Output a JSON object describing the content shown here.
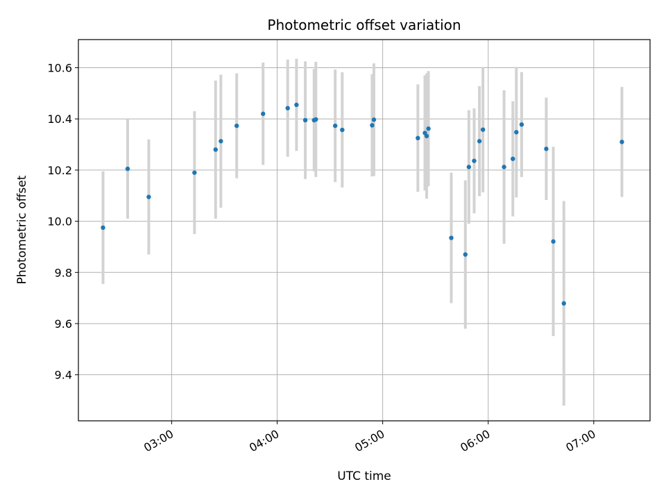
{
  "chart_data": {
    "type": "scatter",
    "title": "Photometric offset variation",
    "xlabel": "UTC time",
    "ylabel": "Photometric offset",
    "grid": true,
    "x_unit": "UTC HH:MM",
    "xlim": [
      "02:07",
      "07:32"
    ],
    "ylim": [
      9.22,
      10.71
    ],
    "x_ticks": [
      "03:00",
      "04:00",
      "05:00",
      "06:00",
      "07:00"
    ],
    "y_ticks": [
      "9.4",
      "9.6",
      "9.8",
      "10.0",
      "10.2",
      "10.4",
      "10.6"
    ],
    "colors": {
      "point": "#1f77b4",
      "errorbar": "#d3d3d3",
      "grid": "#b0b0b0"
    },
    "points": [
      {
        "x": "02:21",
        "y": 9.975,
        "err": 0.22
      },
      {
        "x": "02:35",
        "y": 10.205,
        "err": 0.195
      },
      {
        "x": "02:47",
        "y": 10.095,
        "err": 0.225
      },
      {
        "x": "03:13",
        "y": 10.19,
        "err": 0.24
      },
      {
        "x": "03:25",
        "y": 10.28,
        "err": 0.27
      },
      {
        "x": "03:28",
        "y": 10.313,
        "err": 0.26
      },
      {
        "x": "03:37",
        "y": 10.373,
        "err": 0.205
      },
      {
        "x": "03:52",
        "y": 10.42,
        "err": 0.2
      },
      {
        "x": "04:06",
        "y": 10.442,
        "err": 0.19
      },
      {
        "x": "04:11",
        "y": 10.455,
        "err": 0.18
      },
      {
        "x": "04:16",
        "y": 10.395,
        "err": 0.23
      },
      {
        "x": "04:21",
        "y": 10.395,
        "err": 0.2
      },
      {
        "x": "04:22",
        "y": 10.398,
        "err": 0.225
      },
      {
        "x": "04:33",
        "y": 10.373,
        "err": 0.22
      },
      {
        "x": "04:37",
        "y": 10.357,
        "err": 0.225
      },
      {
        "x": "04:54",
        "y": 10.375,
        "err": 0.2
      },
      {
        "x": "04:55",
        "y": 10.397,
        "err": 0.22
      },
      {
        "x": "05:20",
        "y": 10.325,
        "err": 0.21
      },
      {
        "x": "05:24",
        "y": 10.345,
        "err": 0.225
      },
      {
        "x": "05:25",
        "y": 10.333,
        "err": 0.245
      },
      {
        "x": "05:26",
        "y": 10.362,
        "err": 0.225
      },
      {
        "x": "05:39",
        "y": 9.935,
        "err": 0.255
      },
      {
        "x": "05:47",
        "y": 9.87,
        "err": 0.29
      },
      {
        "x": "05:49",
        "y": 10.212,
        "err": 0.222
      },
      {
        "x": "05:52",
        "y": 10.236,
        "err": 0.205
      },
      {
        "x": "05:55",
        "y": 10.313,
        "err": 0.215
      },
      {
        "x": "05:57",
        "y": 10.358,
        "err": 0.245
      },
      {
        "x": "06:09",
        "y": 10.212,
        "err": 0.3
      },
      {
        "x": "06:14",
        "y": 10.244,
        "err": 0.225
      },
      {
        "x": "06:16",
        "y": 10.348,
        "err": 0.255
      },
      {
        "x": "06:19",
        "y": 10.378,
        "err": 0.205
      },
      {
        "x": "06:33",
        "y": 10.283,
        "err": 0.2
      },
      {
        "x": "06:37",
        "y": 9.921,
        "err": 0.37
      },
      {
        "x": "06:43",
        "y": 9.679,
        "err": 0.4
      },
      {
        "x": "07:16",
        "y": 10.31,
        "err": 0.215
      }
    ]
  }
}
